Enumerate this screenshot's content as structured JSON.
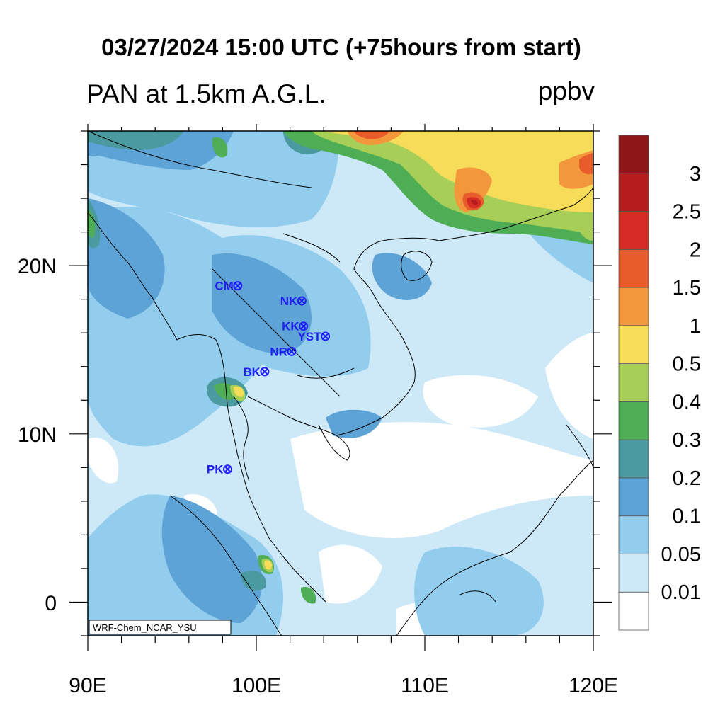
{
  "title": "03/27/2024 15:00 UTC (+75hours from start)",
  "subtitle": "PAN at 1.5km A.G.L.",
  "units": "ppbv",
  "credit": "WRF-Chem_NCAR_YSU",
  "colorbar": {
    "levels": [
      "0.01",
      "0.05",
      "0.1",
      "0.2",
      "0.3",
      "0.4",
      "0.5",
      "1",
      "1.5",
      "2",
      "2.5",
      "3"
    ],
    "colors": [
      "#ffffff",
      "#cde9f8",
      "#93cdee",
      "#5ea3d6",
      "#4a9aa0",
      "#4fae55",
      "#a7cf57",
      "#f7dc5a",
      "#f3973d",
      "#e85c2c",
      "#d62c26",
      "#b51c1d",
      "#8e1518"
    ]
  },
  "map": {
    "lon_ticks": [
      "90E",
      "100E",
      "110E",
      "120E"
    ],
    "lat_ticks": [
      "20N",
      "10N",
      "0"
    ],
    "lon_range": [
      90,
      120
    ],
    "lat_range": [
      -2,
      28
    ]
  },
  "stations": [
    {
      "name": "CM",
      "lon": 98.9,
      "lat": 18.8
    },
    {
      "name": "NK",
      "lon": 102.7,
      "lat": 17.9
    },
    {
      "name": "KK",
      "lon": 102.8,
      "lat": 16.4
    },
    {
      "name": "YST",
      "lon": 104.1,
      "lat": 15.8
    },
    {
      "name": "NR",
      "lon": 102.1,
      "lat": 14.9
    },
    {
      "name": "BK",
      "lon": 100.5,
      "lat": 13.7
    },
    {
      "name": "PK",
      "lon": 98.3,
      "lat": 7.9
    }
  ]
}
